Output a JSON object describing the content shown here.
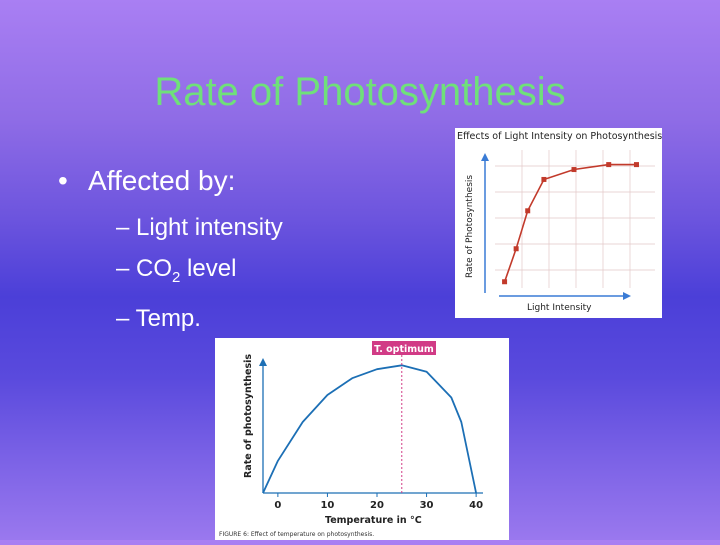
{
  "slide": {
    "title": "Rate of Photosynthesis",
    "bullet": "Affected by:",
    "items": [
      {
        "dash": "–",
        "text": "Light intensity",
        "sub": ""
      },
      {
        "dash": "–",
        "text": "CO",
        "sub": "2",
        "after": " level"
      },
      {
        "dash": "–",
        "text": "Temp.",
        "sub": ""
      }
    ]
  },
  "figure1": {
    "title": "Effects of Light Intensity on Photosynthesis",
    "ylabel": "Rate of Photosynthesis",
    "xlabel": "Light Intensity"
  },
  "figure2": {
    "banner": "T. optimum",
    "ylabel": "Rate of photosynthesis",
    "xlabel": "Temperature in °C",
    "caption": "FIGURE 6: Effect of temperature on photosynthesis.",
    "ticks": [
      "0",
      "10",
      "20",
      "30",
      "40"
    ]
  },
  "chart_data": [
    {
      "type": "line",
      "title": "Effects of Light Intensity on Photosynthesis",
      "xlabel": "Light Intensity",
      "ylabel": "Rate of Photosynthesis",
      "x": [
        0.5,
        1,
        1.5,
        2.2,
        3.5,
        5,
        6.2
      ],
      "values": [
        0.5,
        2.5,
        4.8,
        6.7,
        7.3,
        7.6,
        7.6
      ],
      "xlim": [
        0,
        7
      ],
      "ylim": [
        0,
        8
      ],
      "colors": {
        "line": "#c23a2b",
        "axis": "#3a7bd5"
      }
    },
    {
      "type": "line",
      "xlabel": "Temperature in °C",
      "ylabel": "Rate of photosynthesis",
      "x": [
        -3,
        0,
        5,
        10,
        15,
        20,
        25,
        30,
        35,
        37,
        40
      ],
      "values": [
        0,
        2.5,
        5.5,
        7.6,
        8.9,
        9.6,
        9.9,
        9.4,
        7.4,
        5.5,
        0
      ],
      "xlim": [
        -3,
        43
      ],
      "ylim": [
        0,
        10
      ],
      "optimum_x": 25,
      "colors": {
        "line": "#1c6fb5",
        "marker": "#d13b86"
      }
    }
  ]
}
